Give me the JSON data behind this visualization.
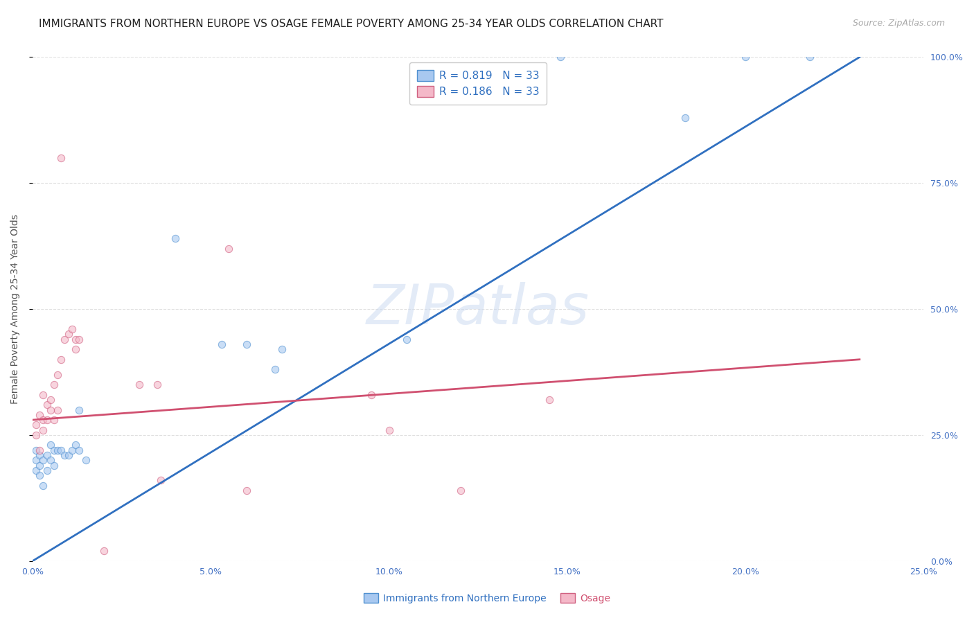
{
  "title": "IMMIGRANTS FROM NORTHERN EUROPE VS OSAGE FEMALE POVERTY AMONG 25-34 YEAR OLDS CORRELATION CHART",
  "source": "Source: ZipAtlas.com",
  "xlabel_blue": "Immigrants from Northern Europe",
  "xlabel_pink": "Osage",
  "ylabel": "Female Poverty Among 25-34 Year Olds",
  "xlim": [
    0,
    0.25
  ],
  "ylim": [
    0,
    1.0
  ],
  "blue_r": "0.819",
  "blue_n": "33",
  "pink_r": "0.186",
  "pink_n": "33",
  "blue_color": "#a8c8f0",
  "pink_color": "#f4b8c8",
  "blue_edge_color": "#5090d0",
  "pink_edge_color": "#d06080",
  "blue_line_color": "#3070c0",
  "pink_line_color": "#d05070",
  "watermark": "ZIPatlas",
  "blue_scatter": [
    [
      0.001,
      0.18
    ],
    [
      0.001,
      0.2
    ],
    [
      0.001,
      0.22
    ],
    [
      0.002,
      0.17
    ],
    [
      0.002,
      0.19
    ],
    [
      0.002,
      0.21
    ],
    [
      0.003,
      0.15
    ],
    [
      0.003,
      0.2
    ],
    [
      0.004,
      0.18
    ],
    [
      0.004,
      0.21
    ],
    [
      0.005,
      0.2
    ],
    [
      0.005,
      0.23
    ],
    [
      0.006,
      0.19
    ],
    [
      0.006,
      0.22
    ],
    [
      0.007,
      0.22
    ],
    [
      0.008,
      0.22
    ],
    [
      0.009,
      0.21
    ],
    [
      0.01,
      0.21
    ],
    [
      0.011,
      0.22
    ],
    [
      0.012,
      0.23
    ],
    [
      0.013,
      0.22
    ],
    [
      0.013,
      0.3
    ],
    [
      0.015,
      0.2
    ],
    [
      0.04,
      0.64
    ],
    [
      0.053,
      0.43
    ],
    [
      0.06,
      0.43
    ],
    [
      0.068,
      0.38
    ],
    [
      0.07,
      0.42
    ],
    [
      0.105,
      0.44
    ],
    [
      0.148,
      1.0
    ],
    [
      0.183,
      0.88
    ],
    [
      0.2,
      1.0
    ],
    [
      0.218,
      1.0
    ]
  ],
  "pink_scatter": [
    [
      0.001,
      0.25
    ],
    [
      0.001,
      0.27
    ],
    [
      0.002,
      0.22
    ],
    [
      0.002,
      0.29
    ],
    [
      0.003,
      0.26
    ],
    [
      0.003,
      0.28
    ],
    [
      0.004,
      0.28
    ],
    [
      0.004,
      0.31
    ],
    [
      0.005,
      0.3
    ],
    [
      0.005,
      0.32
    ],
    [
      0.006,
      0.28
    ],
    [
      0.006,
      0.35
    ],
    [
      0.007,
      0.3
    ],
    [
      0.007,
      0.37
    ],
    [
      0.008,
      0.8
    ],
    [
      0.009,
      0.44
    ],
    [
      0.01,
      0.45
    ],
    [
      0.011,
      0.46
    ],
    [
      0.012,
      0.44
    ],
    [
      0.013,
      0.44
    ],
    [
      0.03,
      0.35
    ],
    [
      0.036,
      0.16
    ],
    [
      0.055,
      0.62
    ],
    [
      0.06,
      0.14
    ],
    [
      0.095,
      0.33
    ],
    [
      0.1,
      0.26
    ],
    [
      0.12,
      0.14
    ],
    [
      0.145,
      0.32
    ],
    [
      0.003,
      0.33
    ],
    [
      0.008,
      0.4
    ],
    [
      0.02,
      0.02
    ],
    [
      0.012,
      0.42
    ],
    [
      0.035,
      0.35
    ]
  ],
  "blue_line": [
    [
      0.0,
      0.0
    ],
    [
      0.232,
      1.0
    ]
  ],
  "pink_line": [
    [
      0.0,
      0.28
    ],
    [
      0.232,
      0.4
    ]
  ],
  "xticks": [
    0.0,
    0.05,
    0.1,
    0.15,
    0.2,
    0.25
  ],
  "xtick_labels": [
    "0.0%",
    "5.0%",
    "10.0%",
    "15.0%",
    "20.0%",
    "25.0%"
  ],
  "yticks": [
    0.0,
    0.25,
    0.5,
    0.75,
    1.0
  ],
  "ytick_labels_right": [
    "0.0%",
    "25.0%",
    "50.0%",
    "75.0%",
    "100.0%"
  ],
  "grid_color": "#e0e0e0",
  "bg_color": "#ffffff",
  "title_fontsize": 11,
  "source_fontsize": 9,
  "axis_label_fontsize": 10,
  "tick_fontsize": 9,
  "legend_fontsize": 11,
  "scatter_size": 55,
  "scatter_alpha": 0.6,
  "scatter_linewidth": 0.8,
  "tick_color": "#4472c4",
  "label_color": "#555555"
}
